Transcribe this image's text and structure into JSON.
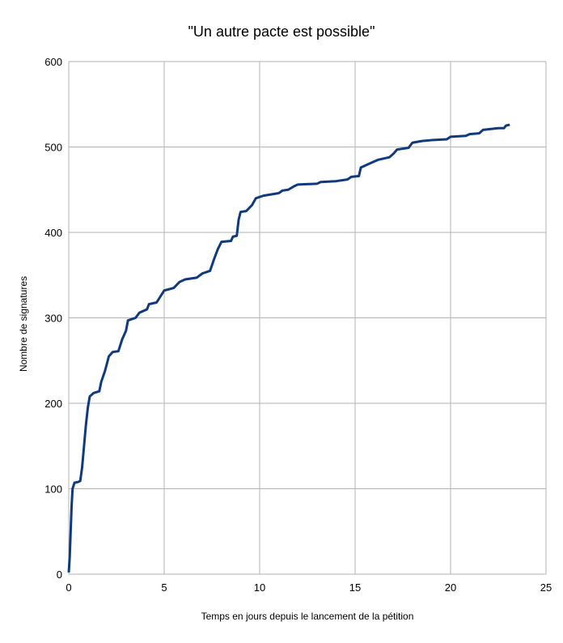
{
  "chart_data": {
    "type": "line",
    "title": "\"Un autre pacte est possible\"",
    "x_label": "Temps en jours depuis le lancement de la pétition",
    "y_label": "Nombre de signatures",
    "xlim": [
      0,
      25
    ],
    "xticks": [
      0,
      5,
      10,
      15,
      20,
      25
    ],
    "ylim": [
      0,
      600
    ],
    "yticks": [
      0,
      100,
      200,
      300,
      400,
      500,
      600
    ],
    "grid": true,
    "series": [
      {
        "color": "#0f3a7d",
        "x": [
          0,
          0.05,
          0.1,
          0.15,
          0.2,
          0.3,
          0.5,
          0.6,
          0.7,
          0.8,
          0.9,
          1.0,
          1.1,
          1.3,
          1.6,
          1.7,
          1.9,
          2.1,
          2.3,
          2.6,
          2.8,
          3.0,
          3.1,
          3.5,
          3.7,
          4.1,
          4.2,
          4.6,
          4.8,
          5.0,
          5.5,
          5.8,
          6.1,
          6.7,
          7.0,
          7.4,
          7.6,
          7.8,
          8.0,
          8.5,
          8.6,
          8.8,
          8.9,
          9.0,
          9.3,
          9.6,
          9.8,
          10.2,
          11.0,
          11.2,
          11.5,
          11.8,
          12.0,
          13.0,
          13.2,
          14.0,
          14.6,
          14.8,
          15.2,
          15.3,
          15.8,
          16.2,
          16.8,
          17.0,
          17.2,
          17.8,
          18.0,
          18.5,
          19.0,
          19.8,
          20.0,
          20.8,
          21.0,
          21.5,
          21.7,
          22.5,
          22.8,
          22.9,
          23.1
        ],
        "values": [
          2,
          20,
          50,
          80,
          100,
          107,
          108,
          109,
          125,
          150,
          175,
          195,
          208,
          212,
          214,
          225,
          238,
          255,
          260,
          261,
          275,
          285,
          297,
          300,
          306,
          310,
          316,
          318,
          325,
          332,
          335,
          342,
          345,
          347,
          352,
          355,
          368,
          380,
          389,
          390,
          395,
          396,
          415,
          424,
          425,
          432,
          440,
          443,
          446,
          449,
          450,
          454,
          456,
          457,
          459,
          460,
          462,
          465,
          466,
          476,
          481,
          485,
          488,
          492,
          497,
          499,
          505,
          507,
          508,
          509,
          512,
          513,
          515,
          516,
          520,
          522,
          522,
          525,
          526
        ]
      }
    ]
  }
}
